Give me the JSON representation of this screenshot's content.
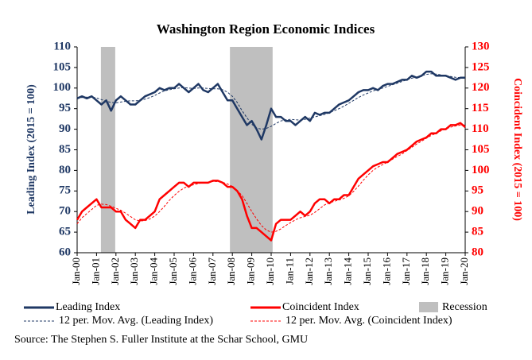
{
  "chart_data": {
    "type": "line",
    "title": "Washington Region Economic Indices",
    "ylabel": "Leading Index (2015 = 100)",
    "y2label": "Coincident Index (2015 = 100)",
    "source": "Source: The Stephen S. Fuller Institute at the Schar School, GMU",
    "categories": [
      "Jan-00",
      null,
      null,
      null,
      "Jan-01",
      null,
      null,
      null,
      "Jan-02",
      null,
      null,
      null,
      "Jan-03",
      null,
      null,
      null,
      "Jan-04",
      null,
      null,
      null,
      "Jan-05",
      null,
      null,
      null,
      "Jan-06",
      null,
      null,
      null,
      "Jan-07",
      null,
      null,
      null,
      "Jan-08",
      null,
      null,
      null,
      "Jan-09",
      null,
      null,
      null,
      "Jan-10",
      null,
      null,
      null,
      "Jan-11",
      null,
      null,
      null,
      "Jan-12",
      null,
      null,
      null,
      "Jan-13",
      null,
      null,
      null,
      "Jan-14",
      null,
      null,
      null,
      "Jan-15",
      null,
      null,
      null,
      "Jan-16",
      null,
      null,
      null,
      "Jan-17",
      null,
      null,
      null,
      "Jan-18",
      null,
      null,
      null,
      "Jan-19",
      null,
      null,
      null,
      "Jan-20"
    ],
    "ylim": [
      60,
      110
    ],
    "yticks": [
      60,
      65,
      70,
      75,
      80,
      85,
      90,
      95,
      100,
      105,
      110
    ],
    "y2lim": [
      80,
      130
    ],
    "y2ticks": [
      80,
      85,
      90,
      95,
      100,
      105,
      110,
      115,
      120,
      125,
      130
    ],
    "recession_label": "Recession",
    "recession_color": "#bfbfbf",
    "recessions": [
      {
        "start": 4.9,
        "end": 7.85
      },
      {
        "start": 31.5,
        "end": 40.3
      }
    ],
    "series": [
      {
        "name": "Leading Index",
        "color": "#1f3864",
        "style": "solid",
        "values": [
          97.5,
          98,
          97.5,
          98,
          97,
          96,
          97,
          94.5,
          97,
          98,
          97,
          96,
          96,
          97,
          98,
          98.5,
          99,
          100,
          99.5,
          100,
          100,
          101,
          100,
          99,
          100,
          101,
          99.5,
          99,
          100,
          101,
          99,
          97,
          97,
          95,
          93,
          91,
          92,
          90,
          87.5,
          91,
          95,
          93,
          93,
          92,
          92,
          91,
          92,
          93,
          92,
          94,
          93.5,
          94,
          94,
          95,
          96,
          96.5,
          97,
          98,
          99,
          99.5,
          99.5,
          100,
          99.5,
          100.5,
          101,
          101,
          101.5,
          102,
          102,
          103,
          102.5,
          103,
          104,
          104,
          103,
          103,
          103,
          102.5,
          102,
          102.5,
          102.5
        ]
      },
      {
        "name": "Coincident Index",
        "color": "#ff0000",
        "style": "solid",
        "axis": "y2",
        "values": [
          88,
          90,
          91,
          92,
          93,
          91,
          91,
          91,
          90,
          90,
          88,
          87,
          86,
          88,
          88,
          89,
          90,
          93,
          94,
          95,
          96,
          97,
          97,
          96,
          97,
          97,
          97,
          97,
          97.5,
          97.5,
          97,
          96,
          96,
          95,
          93,
          89,
          86,
          86,
          85,
          84,
          83,
          87,
          88,
          88,
          88,
          89,
          90,
          89,
          90,
          92,
          93,
          93,
          92,
          93,
          93,
          94,
          94,
          96,
          98,
          99,
          100,
          101,
          101.5,
          102,
          102,
          103,
          104,
          104.5,
          105,
          106,
          107,
          107.5,
          108,
          109,
          109,
          110,
          110,
          111,
          111,
          111.5,
          110.5
        ]
      },
      {
        "name": "12 per. Mov. Avg. (Leading Index)",
        "color": "#1f3864",
        "style": "dashed",
        "values": [
          97.6,
          97.7,
          97.8,
          97.8,
          97.6,
          97.2,
          96.8,
          96.5,
          96.4,
          96.6,
          96.8,
          96.9,
          96.9,
          97,
          97.3,
          97.7,
          98.2,
          98.8,
          99.3,
          99.6,
          99.8,
          100,
          100.1,
          100,
          99.9,
          100,
          100,
          99.9,
          99.8,
          99.8,
          99.6,
          99,
          98,
          96.5,
          94.5,
          92.8,
          91.2,
          90.3,
          90,
          90.2,
          90.7,
          91.4,
          92,
          92.3,
          92.4,
          92.3,
          92.2,
          92.4,
          92.7,
          93,
          93.3,
          93.6,
          94,
          94.5,
          95,
          95.6,
          96.3,
          97,
          97.7,
          98.3,
          98.8,
          99.3,
          99.7,
          100,
          100.4,
          100.8,
          101.2,
          101.6,
          102,
          102.4,
          102.7,
          103,
          103.3,
          103.5,
          103.4,
          103.2,
          103,
          102.8,
          102.6,
          102.5,
          102.4
        ]
      },
      {
        "name": "12 per. Mov. Avg. (Coincident Index)",
        "color": "#ff0000",
        "style": "dashed",
        "axis": "y2",
        "values": [
          87,
          88.5,
          89.5,
          90.5,
          91.5,
          91.8,
          91.7,
          91.3,
          90.8,
          90.3,
          89.6,
          88.8,
          88,
          87.7,
          87.8,
          88.2,
          88.9,
          90,
          91.3,
          92.7,
          93.9,
          94.9,
          95.7,
          96.2,
          96.5,
          96.8,
          97,
          97.1,
          97.3,
          97.3,
          97.1,
          96.7,
          96.1,
          95.1,
          93.9,
          92,
          90,
          88.2,
          86.6,
          85.5,
          85,
          85.2,
          85.8,
          86.6,
          87.3,
          88,
          88.5,
          88.8,
          89.1,
          89.8,
          90.7,
          91.6,
          92.1,
          92.5,
          92.8,
          93.2,
          93.8,
          94.9,
          96.2,
          97.6,
          98.9,
          100,
          100.8,
          101.4,
          102,
          102.7,
          103.4,
          104,
          104.8,
          105.6,
          106.4,
          107.1,
          107.8,
          108.5,
          109,
          109.6,
          110.1,
          110.5,
          110.8,
          111,
          111
        ]
      }
    ]
  }
}
